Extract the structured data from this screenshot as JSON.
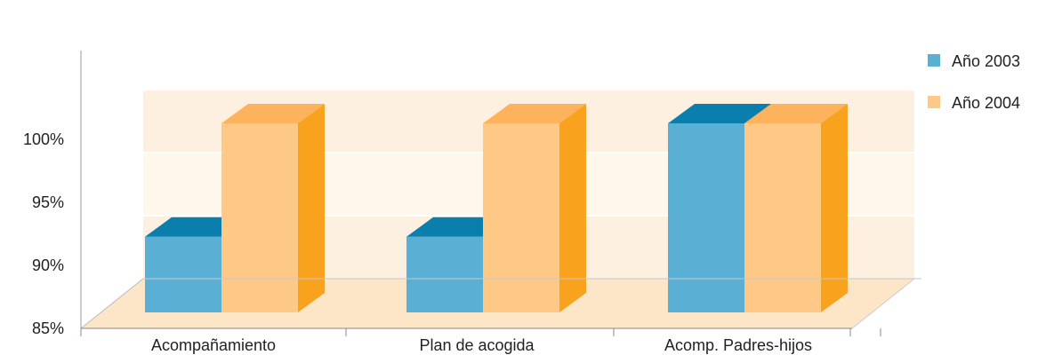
{
  "chart_data": {
    "type": "bar",
    "categories": [
      "Acompañamiento",
      "Plan de acogida",
      "Acomp. Padres-hijos"
    ],
    "series": [
      {
        "name": "Año 2003",
        "values": [
          91,
          91,
          100
        ]
      },
      {
        "name": "Año 2004",
        "values": [
          100,
          100,
          100
        ]
      }
    ],
    "yticks": [
      "85%",
      "90%",
      "95%",
      "100%"
    ],
    "ylim": [
      85,
      100
    ],
    "legend_position": "right",
    "three_d": true,
    "colors": {
      "series_front": [
        "#5ab0d4",
        "#fec887"
      ],
      "series_top": [
        "#0a7fad",
        "#fdb35e"
      ],
      "series_side": [
        "#0a7fad",
        "#f8a21e"
      ],
      "wall_light": "#fff6ec",
      "wall_dark": "#fef0e1",
      "floor": "#fde5c8"
    }
  }
}
